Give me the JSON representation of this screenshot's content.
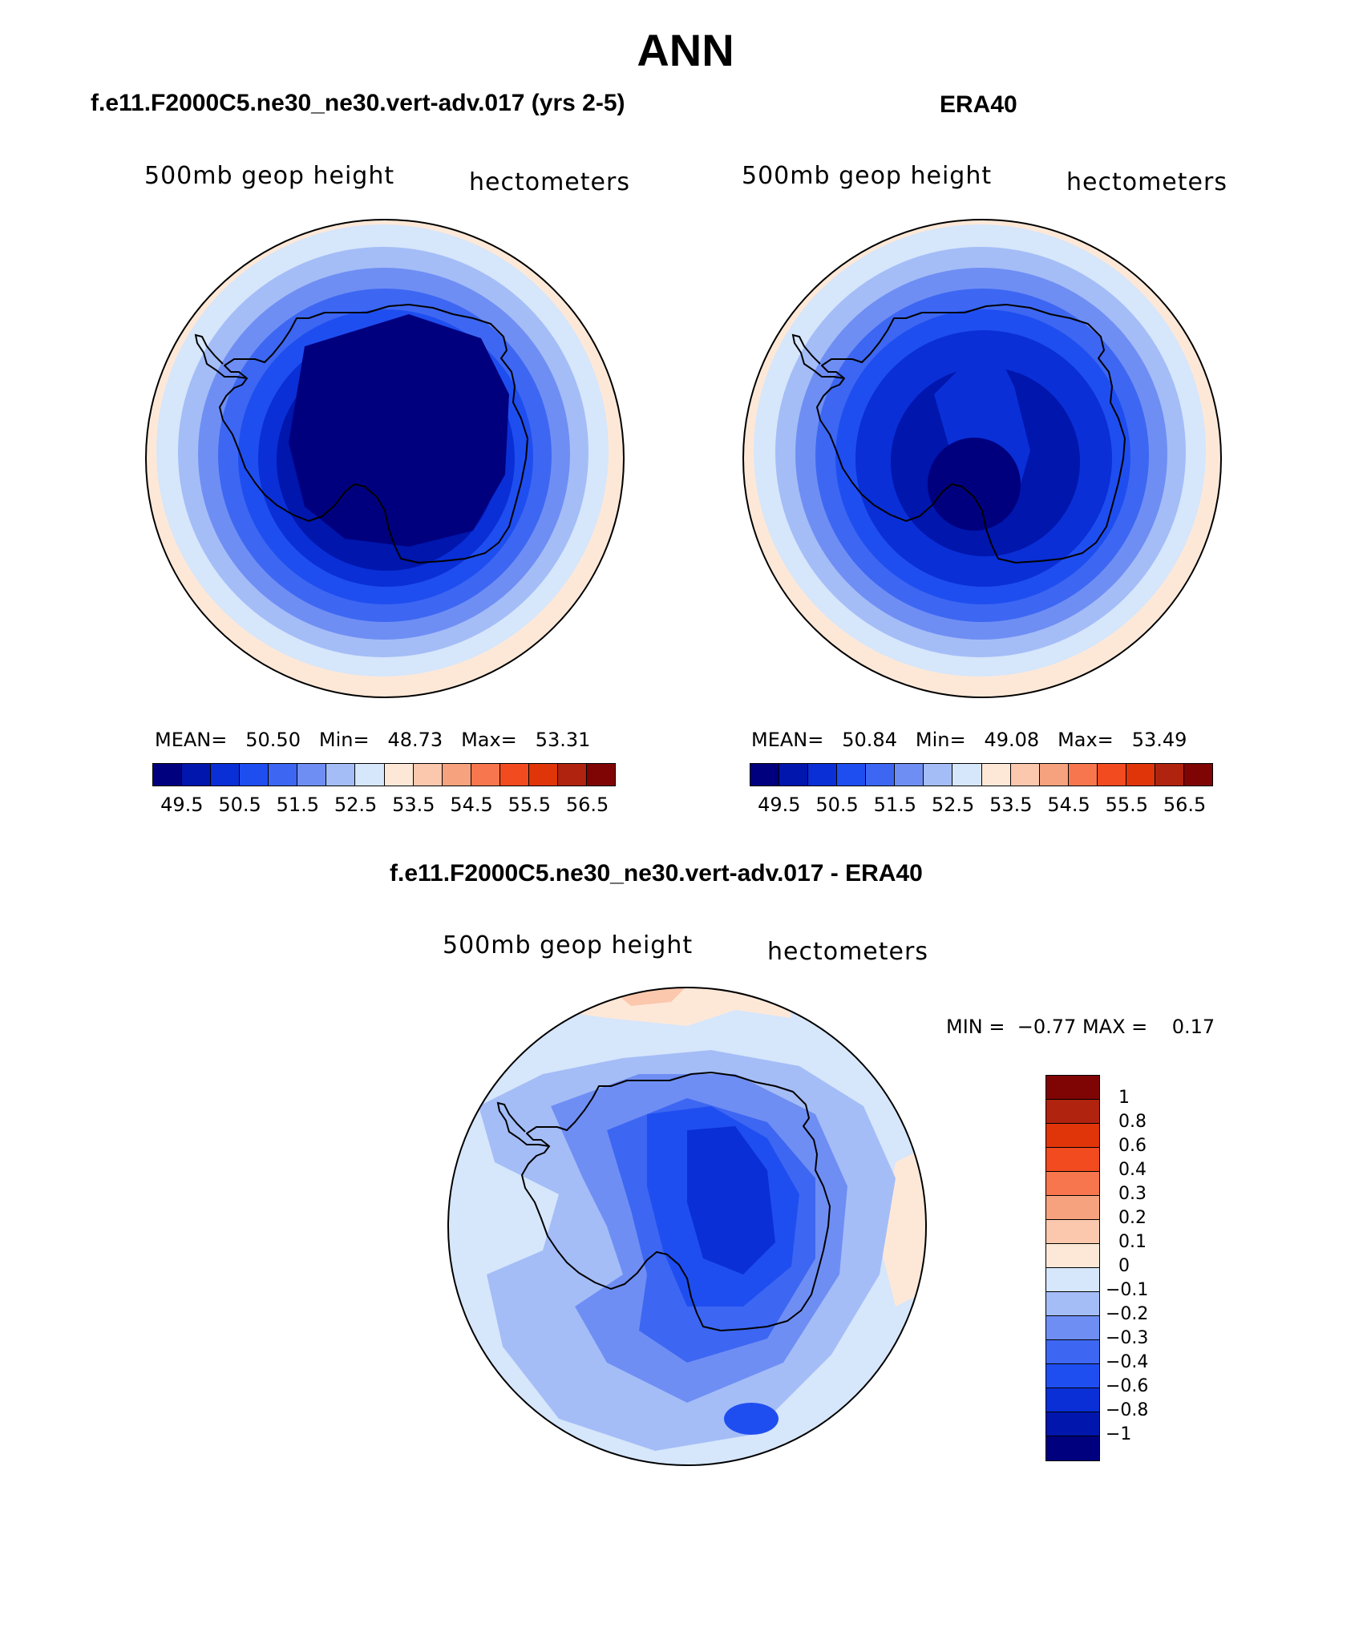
{
  "page_title": "ANN",
  "colors": {
    "palette": [
      "#00007f",
      "#0016ad",
      "#0a2fd6",
      "#1f4ef0",
      "#3d67f2",
      "#6f8ef4",
      "#a4bdf7",
      "#d6e6fb",
      "#fde8d8",
      "#fbc8ad",
      "#f7a27e",
      "#f7764d",
      "#f24b1f",
      "#df3509",
      "#b0230f",
      "#7f0505"
    ],
    "diff_palette": [
      "#00007f",
      "#0016ad",
      "#0a2fd6",
      "#1f4ef0",
      "#3d67f2",
      "#6f8ef4",
      "#a4bdf7",
      "#d6e6fb",
      "#fde8d8",
      "#fbc8ad",
      "#f7a27e",
      "#f7764d",
      "#f24b1f",
      "#df3509",
      "#b0230f",
      "#7f0505"
    ]
  },
  "chart_data": [
    {
      "type": "heatmap",
      "id": "model",
      "title": "f.e11.F2000C5.ne30_ne30.vert-adv.017 (yrs 2-5)",
      "variable": "500mb geop height",
      "units": "hectometers",
      "stats": {
        "mean_label": "MEAN=",
        "mean": "50.50",
        "min_label": "Min=",
        "min": "48.73",
        "max_label": "Max=",
        "max": "53.31"
      },
      "colorbar_ticks": [
        "49.5",
        "50.5",
        "51.5",
        "52.5",
        "53.5",
        "54.5",
        "55.5",
        "56.5"
      ],
      "levels": [
        49.5,
        50.0,
        50.5,
        51.0,
        51.5,
        52.0,
        52.5,
        53.0,
        53.5,
        54.0,
        54.5,
        55.0,
        55.5,
        56.0,
        56.5
      ],
      "ring_levels": [
        7,
        6,
        5,
        4,
        3,
        2,
        1,
        1,
        0
      ]
    },
    {
      "type": "heatmap",
      "id": "obs",
      "title": "ERA40",
      "variable": "500mb geop height",
      "units": "hectometers",
      "stats": {
        "mean_label": "MEAN=",
        "mean": "50.84",
        "min_label": "Min=",
        "min": "49.08",
        "max_label": "Max=",
        "max": "53.49"
      },
      "colorbar_ticks": [
        "49.5",
        "50.5",
        "51.5",
        "52.5",
        "53.5",
        "54.5",
        "55.5",
        "56.5"
      ],
      "levels": [
        49.5,
        50.0,
        50.5,
        51.0,
        51.5,
        52.0,
        52.5,
        53.0,
        53.5,
        54.0,
        54.5,
        55.0,
        55.5,
        56.0,
        56.5
      ],
      "ring_levels": [
        7,
        6,
        5,
        4,
        3,
        2,
        2,
        1,
        0
      ]
    },
    {
      "type": "heatmap",
      "id": "diff",
      "title": "f.e11.F2000C5.ne30_ne30.vert-adv.017 - ERA40",
      "variable": "500mb geop height",
      "units": "hectometers",
      "stats": {
        "min_label": "MIN =",
        "min": "−0.77",
        "max_label": "MAX =",
        "max": "0.17"
      },
      "colorbar_labels": [
        "1",
        "0.8",
        "0.6",
        "0.4",
        "0.3",
        "0.2",
        "0.1",
        "0",
        "−0.1",
        "−0.2",
        "−0.3",
        "−0.4",
        "−0.6",
        "−0.8",
        "−1"
      ]
    }
  ]
}
